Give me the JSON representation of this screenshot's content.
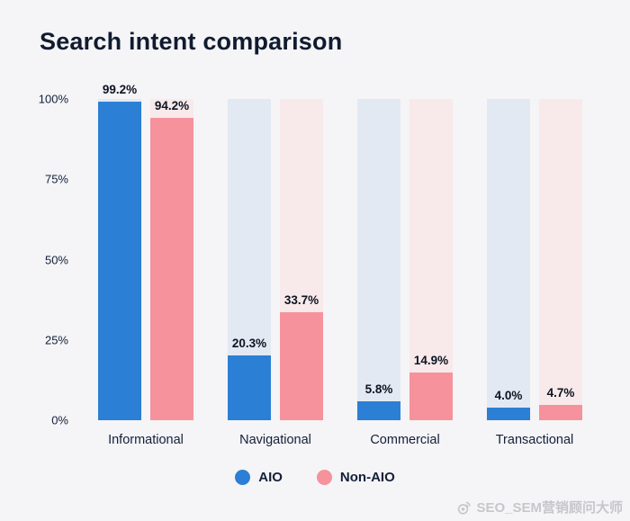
{
  "title": "Search intent comparison",
  "chart_data": {
    "type": "bar",
    "title": "Search intent comparison",
    "categories": [
      "Informational",
      "Navigational",
      "Commercial",
      "Transactional"
    ],
    "series": [
      {
        "name": "AIO",
        "color": "#2b7fd4",
        "band_color": "#e3e9f2",
        "values": [
          99.2,
          20.3,
          5.8,
          4.0
        ]
      },
      {
        "name": "Non-AIO",
        "color": "#f6929c",
        "band_color": "#f8e9ea",
        "values": [
          94.2,
          33.7,
          14.9,
          4.7
        ]
      }
    ],
    "xlabel": "",
    "ylabel": "",
    "ylim": [
      0,
      100
    ],
    "yticks": [
      "0%",
      "25%",
      "50%",
      "75%",
      "100%"
    ],
    "grid": false,
    "legend_position": "bottom",
    "value_label_format": "one-decimal-percent"
  },
  "watermark": {
    "text": "SEO_SEM营销顾问大师"
  },
  "colors": {
    "background": "#f5f4f6",
    "title_text": "#101b30",
    "axis_text": "#12203a",
    "value_label_text": "#0c1322",
    "aio_bar": "#2b7fd4",
    "non_aio_bar": "#f6929c",
    "aio_band": "#e3e9f2",
    "non_aio_band": "#f8e9ea",
    "watermark_text": "#c7c7cb"
  }
}
